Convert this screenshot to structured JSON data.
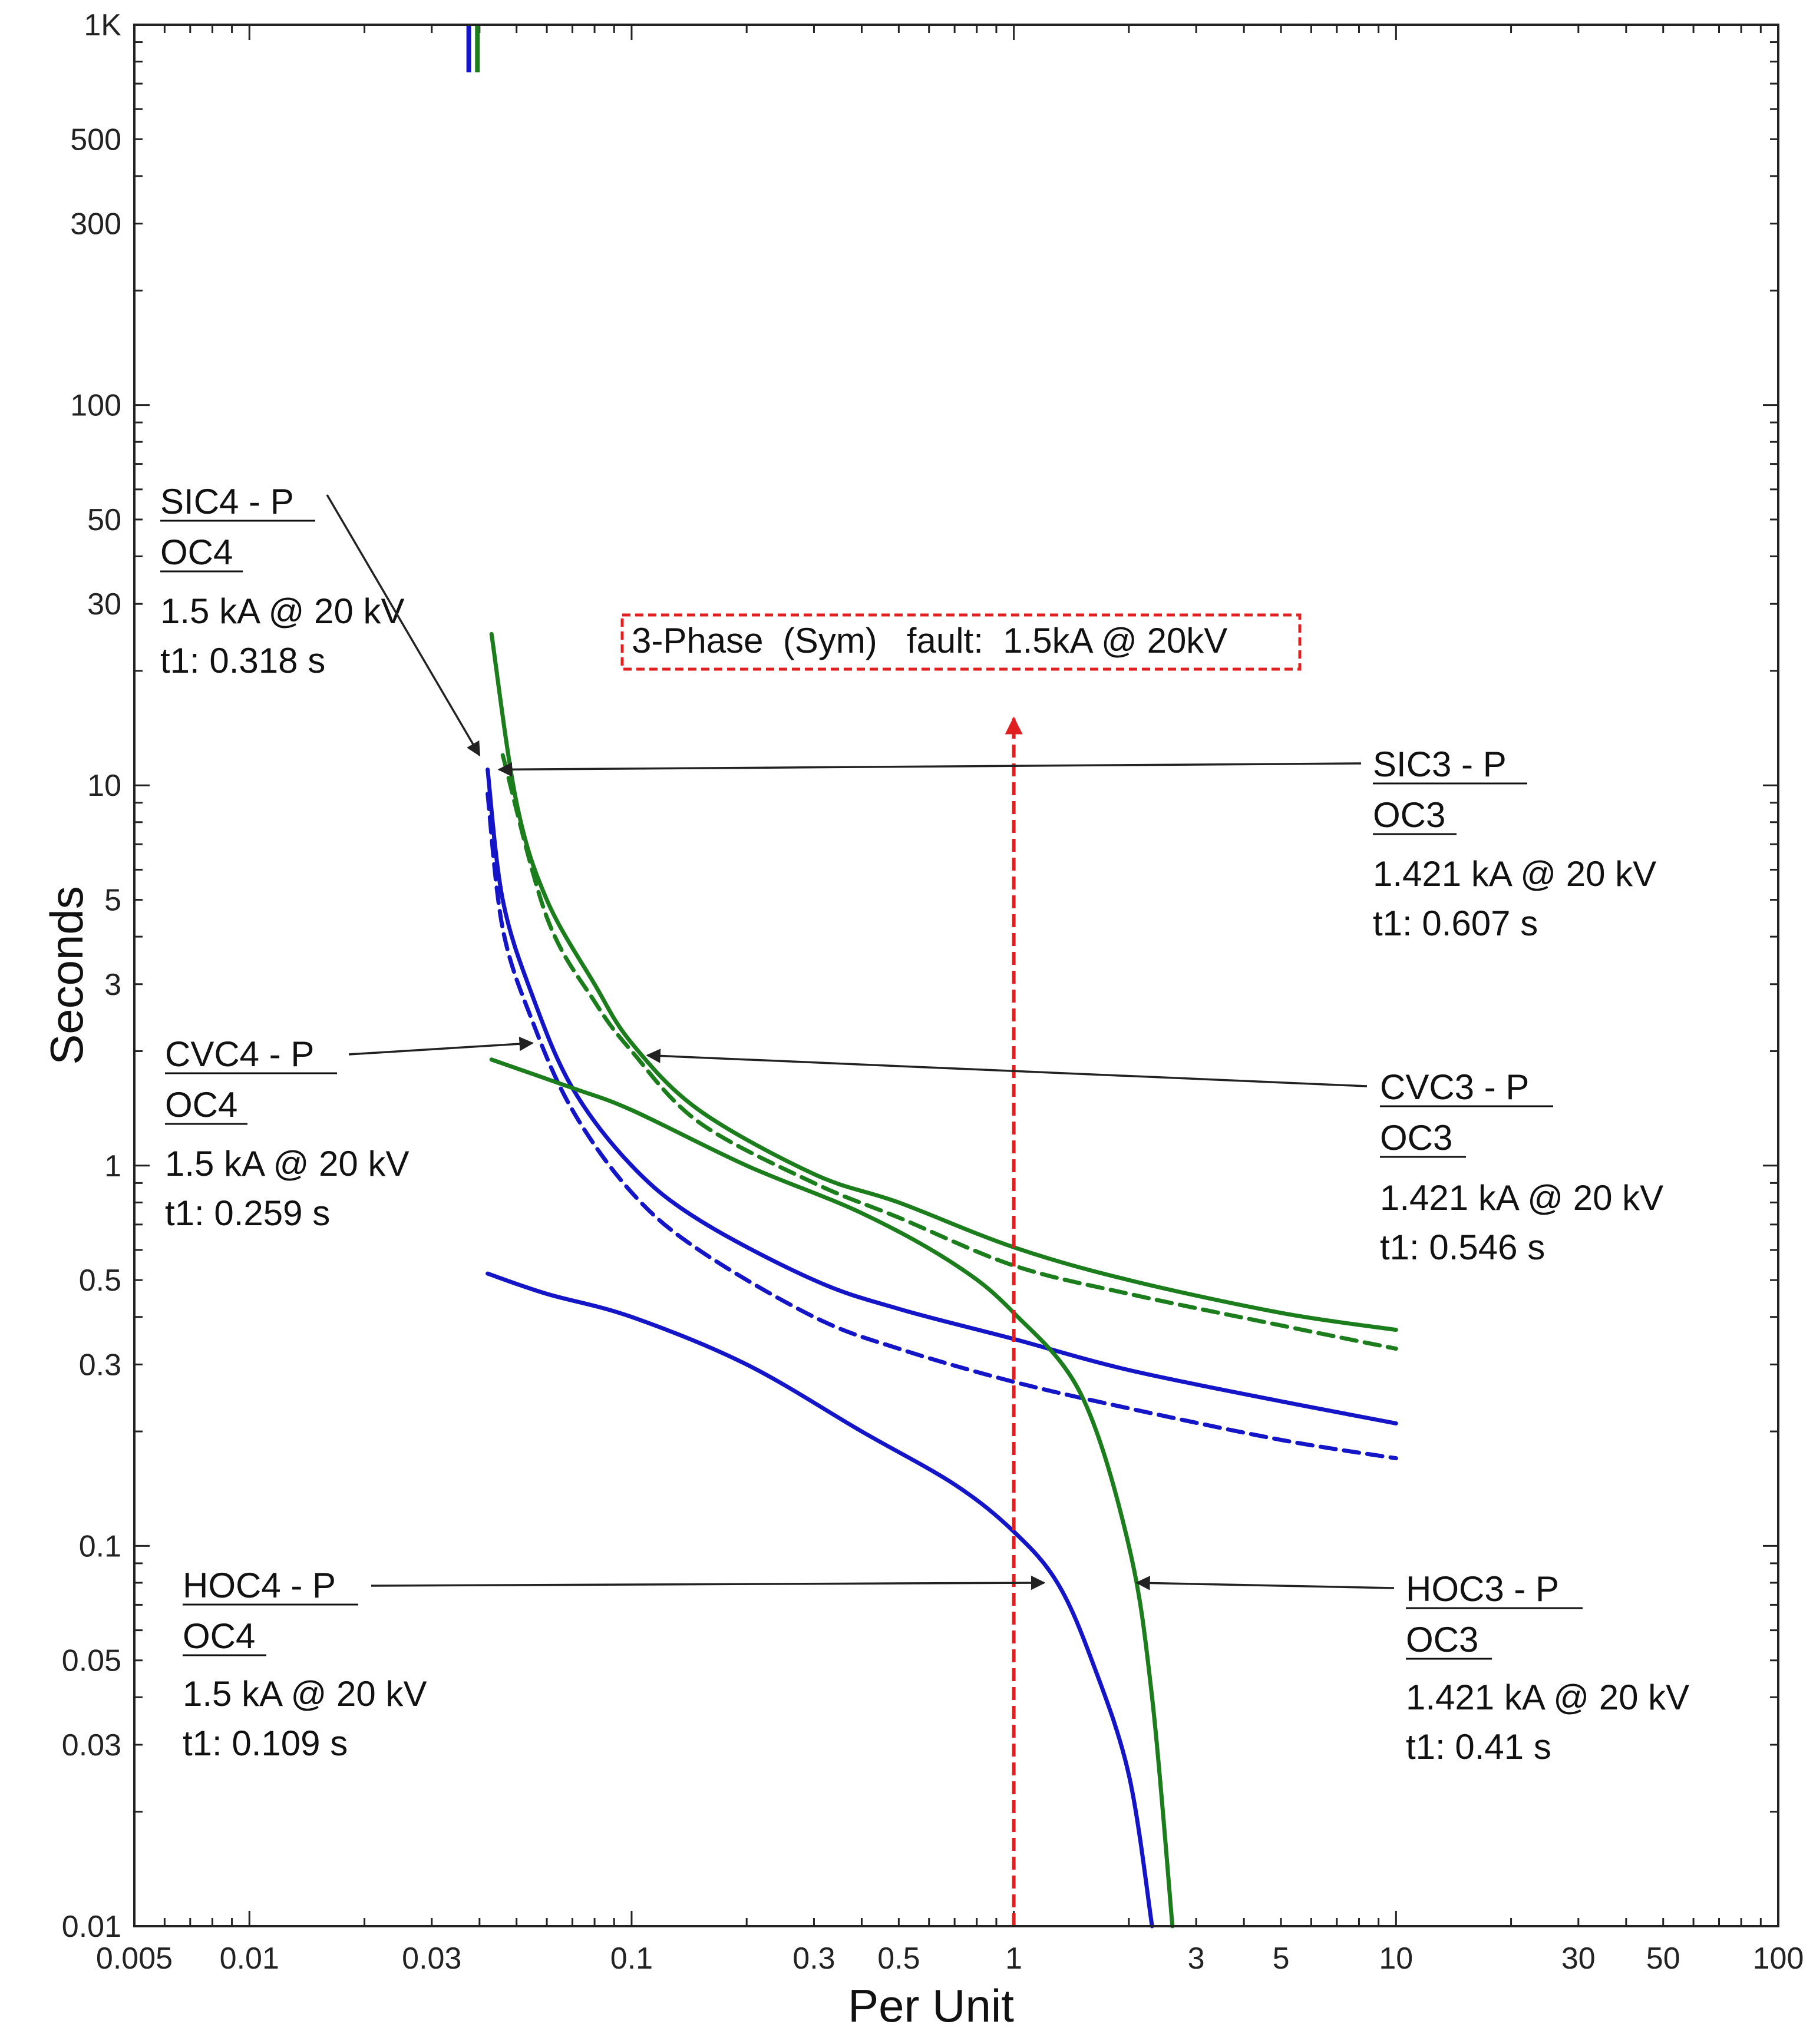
{
  "chart_data": {
    "type": "line",
    "scale": "log-log",
    "xlabel": "Per Unit",
    "ylabel": "Seconds",
    "xlim": [
      0.005,
      100
    ],
    "ylim": [
      0.01,
      1000
    ],
    "x_ticks": [
      {
        "v": 0.005,
        "label": "0.005"
      },
      {
        "v": 0.01,
        "label": "0.01"
      },
      {
        "v": 0.03,
        "label": "0.03"
      },
      {
        "v": 0.1,
        "label": "0.1"
      },
      {
        "v": 0.3,
        "label": "0.3"
      },
      {
        "v": 0.5,
        "label": "0.5"
      },
      {
        "v": 1,
        "label": "1"
      },
      {
        "v": 3,
        "label": "3"
      },
      {
        "v": 5,
        "label": "5"
      },
      {
        "v": 10,
        "label": "10"
      },
      {
        "v": 30,
        "label": "30"
      },
      {
        "v": 50,
        "label": "50"
      },
      {
        "v": 100,
        "label": "100"
      }
    ],
    "y_ticks": [
      {
        "v": 1000,
        "label": "1K"
      },
      {
        "v": 500,
        "label": "500"
      },
      {
        "v": 300,
        "label": "300"
      },
      {
        "v": 100,
        "label": "100"
      },
      {
        "v": 50,
        "label": "50"
      },
      {
        "v": 30,
        "label": "30"
      },
      {
        "v": 10,
        "label": "10"
      },
      {
        "v": 5,
        "label": "5"
      },
      {
        "v": 3,
        "label": "3"
      },
      {
        "v": 1,
        "label": "1"
      },
      {
        "v": 0.5,
        "label": "0.5"
      },
      {
        "v": 0.3,
        "label": "0.3"
      },
      {
        "v": 0.1,
        "label": "0.1"
      },
      {
        "v": 0.05,
        "label": "0.05"
      },
      {
        "v": 0.03,
        "label": "0.03"
      },
      {
        "v": 0.01,
        "label": "0.01"
      }
    ],
    "colors": {
      "oc3": "#1b7d1b",
      "oc4": "#1515c8",
      "fault": "#e02020",
      "ink": "#222222"
    },
    "series": [
      {
        "name": "SIC4 - P",
        "color": "#1515c8",
        "style": "solid",
        "points": [
          [
            0.042,
            11
          ],
          [
            0.046,
            5
          ],
          [
            0.055,
            2.8
          ],
          [
            0.07,
            1.6
          ],
          [
            0.1,
            1.0
          ],
          [
            0.15,
            0.72
          ],
          [
            0.3,
            0.5
          ],
          [
            0.5,
            0.42
          ],
          [
            1,
            0.35
          ],
          [
            2,
            0.29
          ],
          [
            5,
            0.24
          ],
          [
            10,
            0.21
          ]
        ]
      },
      {
        "name": "CVC4 - P",
        "color": "#1515c8",
        "style": "dashed",
        "points": [
          [
            0.042,
            9.5
          ],
          [
            0.046,
            4.2
          ],
          [
            0.055,
            2.4
          ],
          [
            0.07,
            1.4
          ],
          [
            0.1,
            0.85
          ],
          [
            0.15,
            0.6
          ],
          [
            0.3,
            0.4
          ],
          [
            0.5,
            0.33
          ],
          [
            1,
            0.27
          ],
          [
            2,
            0.23
          ],
          [
            5,
            0.19
          ],
          [
            10,
            0.17
          ]
        ]
      },
      {
        "name": "HOC4 - P",
        "color": "#1515c8",
        "style": "solid",
        "points": [
          [
            0.042,
            0.52
          ],
          [
            0.06,
            0.46
          ],
          [
            0.1,
            0.4
          ],
          [
            0.2,
            0.3
          ],
          [
            0.4,
            0.2
          ],
          [
            0.7,
            0.145
          ],
          [
            1,
            0.109
          ],
          [
            1.3,
            0.08
          ],
          [
            1.6,
            0.05
          ],
          [
            2,
            0.025
          ],
          [
            2.3,
            0.01
          ]
        ]
      },
      {
        "name": "SIC3 - P",
        "color": "#1b7d1b",
        "style": "solid",
        "points": [
          [
            0.043,
            25
          ],
          [
            0.05,
            9
          ],
          [
            0.06,
            5
          ],
          [
            0.08,
            3
          ],
          [
            0.1,
            2.1
          ],
          [
            0.15,
            1.4
          ],
          [
            0.3,
            0.95
          ],
          [
            0.5,
            0.8
          ],
          [
            1,
            0.61
          ],
          [
            2,
            0.5
          ],
          [
            5,
            0.41
          ],
          [
            10,
            0.37
          ]
        ]
      },
      {
        "name": "CVC3 - P",
        "color": "#1b7d1b",
        "style": "dashed",
        "points": [
          [
            0.046,
            12
          ],
          [
            0.06,
            4.5
          ],
          [
            0.08,
            2.7
          ],
          [
            0.1,
            2.0
          ],
          [
            0.15,
            1.3
          ],
          [
            0.3,
            0.9
          ],
          [
            0.5,
            0.73
          ],
          [
            1,
            0.546
          ],
          [
            2,
            0.46
          ],
          [
            5,
            0.38
          ],
          [
            10,
            0.33
          ]
        ]
      },
      {
        "name": "HOC3 - P",
        "color": "#1b7d1b",
        "style": "solid",
        "points": [
          [
            0.043,
            1.9
          ],
          [
            0.07,
            1.6
          ],
          [
            0.1,
            1.4
          ],
          [
            0.2,
            1.0
          ],
          [
            0.4,
            0.75
          ],
          [
            0.7,
            0.55
          ],
          [
            1,
            0.41
          ],
          [
            1.5,
            0.25
          ],
          [
            2,
            0.1
          ],
          [
            2.3,
            0.04
          ],
          [
            2.6,
            0.01
          ]
        ]
      }
    ],
    "upper_lines": [
      {
        "x": 0.0375,
        "y_from": 750,
        "y_to": 1000,
        "color": "#1515c8"
      },
      {
        "x": 0.0395,
        "y_from": 750,
        "y_to": 1000,
        "color": "#1b7d1b"
      }
    ],
    "fault_line": {
      "x": 1,
      "y_from": 0.01,
      "y_to": 15
    },
    "fault_box": {
      "text": "3-Phase  (Sym)   fault:  1.5kA @ 20kV"
    },
    "annotations": [
      {
        "id": "sic4",
        "title": "SIC4 - P",
        "relay": "OC4",
        "current": "1.5 kA @ 20 kV",
        "time": "t1: 0.318 s",
        "arrow_to": [
          0.04,
          12
        ]
      },
      {
        "id": "cvc4",
        "title": "CVC4 - P",
        "relay": "OC4",
        "current": "1.5 kA @ 20 kV",
        "time": "t1: 0.259 s",
        "arrow_to": [
          0.055,
          2.1
        ]
      },
      {
        "id": "hoc4",
        "title": "HOC4 - P",
        "relay": "OC4",
        "current": "1.5 kA @ 20 kV",
        "time": "t1: 0.109 s",
        "arrow_to": [
          1.2,
          0.08
        ]
      },
      {
        "id": "sic3",
        "title": "SIC3 - P",
        "relay": "OC3",
        "current": "1.421 kA @ 20 kV",
        "time": "t1: 0.607 s",
        "arrow_to": [
          0.045,
          11
        ]
      },
      {
        "id": "cvc3",
        "title": "CVC3 - P",
        "relay": "OC3",
        "current": "1.421 kA @ 20 kV",
        "time": "t1: 0.546 s",
        "arrow_to": [
          0.11,
          1.95
        ]
      },
      {
        "id": "hoc3",
        "title": "HOC3 - P",
        "relay": "OC3",
        "current": "1.421 kA @ 20 kV",
        "time": "t1: 0.41 s",
        "arrow_to": [
          2.1,
          0.08
        ]
      }
    ]
  }
}
